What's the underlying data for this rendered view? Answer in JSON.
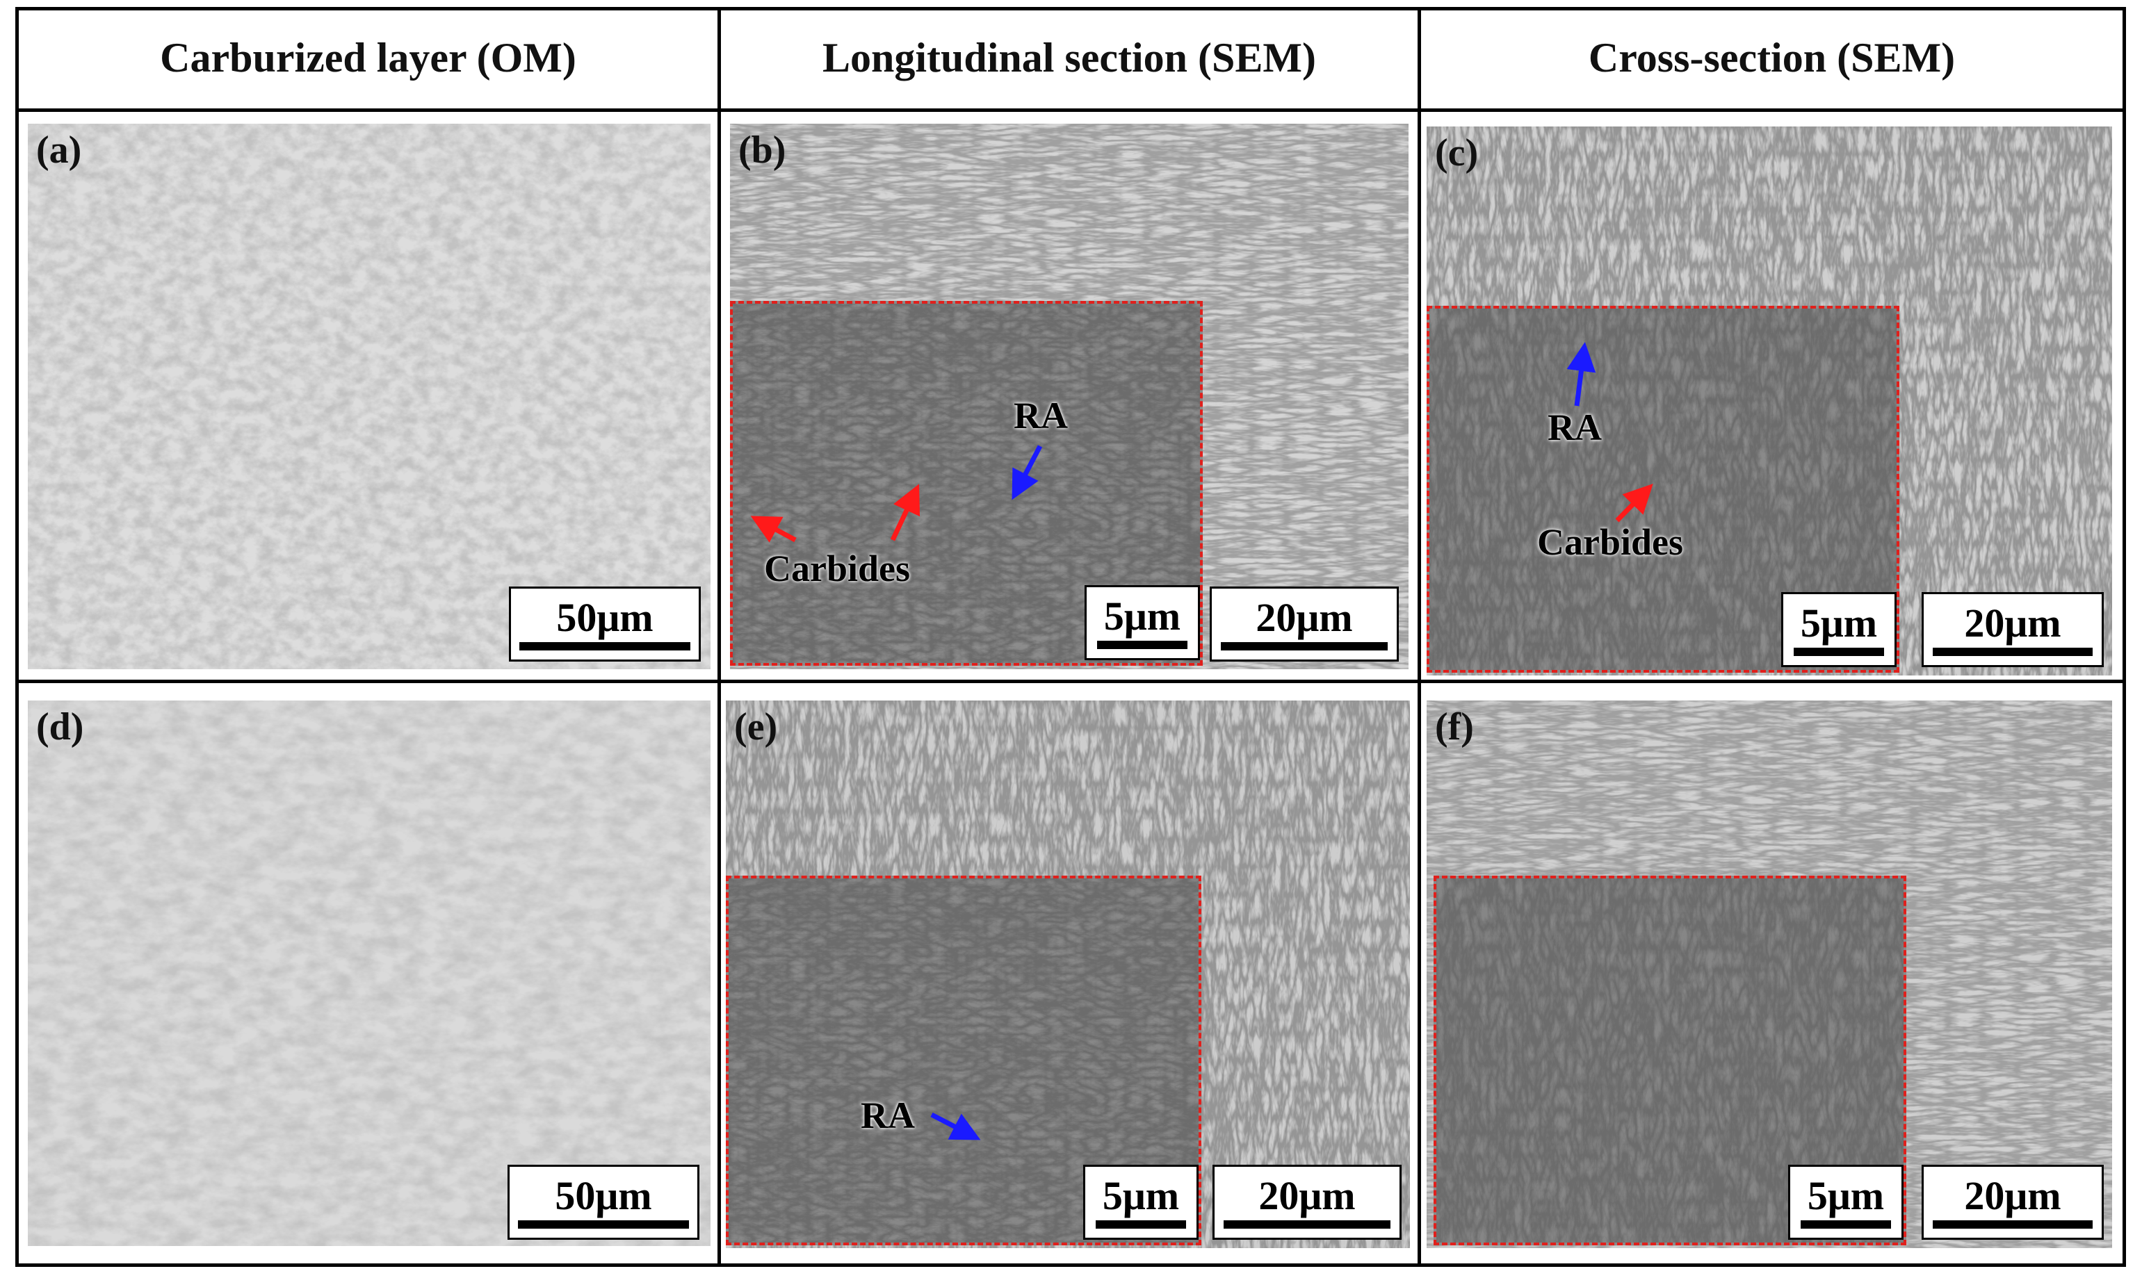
{
  "columns": [
    {
      "label": "Carburized layer (OM)"
    },
    {
      "label": "Longitudinal section (SEM)"
    },
    {
      "label": "Cross-section (SEM)"
    }
  ],
  "panels": {
    "a": {
      "label": "(a)",
      "scale": "50μm"
    },
    "b": {
      "label": "(b)",
      "scale": "20μm",
      "inset_scale": "5μm",
      "anno_ra": "RA",
      "anno_carbides": "Carbides"
    },
    "c": {
      "label": "(c)",
      "scale": "20μm",
      "inset_scale": "5μm",
      "anno_ra": "RA",
      "anno_carbides": "Carbides"
    },
    "d": {
      "label": "(d)",
      "scale": "50μm"
    },
    "e": {
      "label": "(e)",
      "scale": "20μm",
      "inset_scale": "5μm",
      "anno_ra": "RA"
    },
    "f": {
      "label": "(f)",
      "scale": "20μm",
      "inset_scale": "5μm"
    }
  },
  "colors": {
    "inset_border": "#e0201c",
    "arrow_ra": "#1a1aff",
    "arrow_carbides": "#ff1a1a"
  }
}
